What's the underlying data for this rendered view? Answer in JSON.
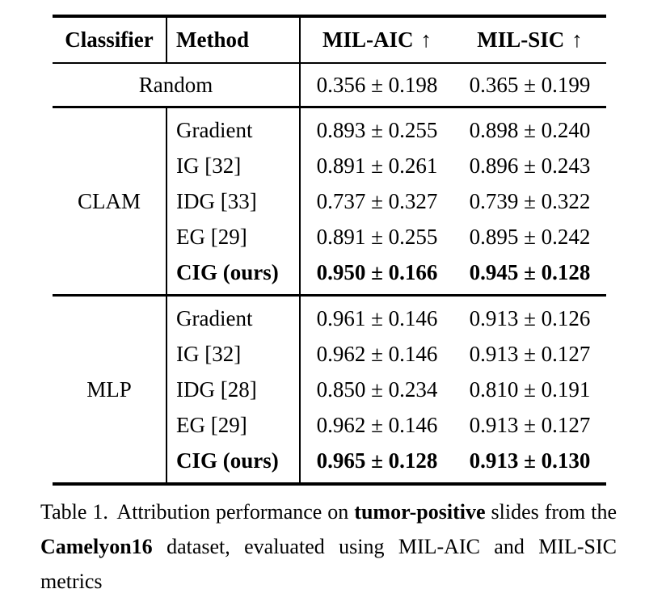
{
  "table": {
    "headers": {
      "classifier": "Classifier",
      "method": "Method",
      "mil_aic": "MIL-AIC",
      "mil_sic": "MIL-SIC",
      "arrow": "↑"
    },
    "random_row": {
      "label": "Random",
      "mil_aic": "0.356 ± 0.198",
      "mil_sic": "0.365 ± 0.199"
    },
    "groups": [
      {
        "classifier": "CLAM",
        "rows": [
          {
            "method": "Gradient",
            "mil_aic": "0.893 ± 0.255",
            "mil_sic": "0.898 ± 0.240"
          },
          {
            "method": "IG [32]",
            "mil_aic": "0.891 ± 0.261",
            "mil_sic": "0.896 ± 0.243"
          },
          {
            "method": "IDG [33]",
            "mil_aic": "0.737 ± 0.327",
            "mil_sic": "0.739 ± 0.322"
          },
          {
            "method": "EG [29]",
            "mil_aic": "0.891 ± 0.255",
            "mil_sic": "0.895 ± 0.242"
          },
          {
            "method": "CIG (ours)",
            "mil_aic": "0.950 ± 0.166",
            "mil_sic": "0.945 ± 0.128"
          }
        ]
      },
      {
        "classifier": "MLP",
        "rows": [
          {
            "method": "Gradient",
            "mil_aic": "0.961 ± 0.146",
            "mil_sic": "0.913 ± 0.126"
          },
          {
            "method": "IG [32]",
            "mil_aic": "0.962 ± 0.146",
            "mil_sic": "0.913 ± 0.127"
          },
          {
            "method": "IDG [28]",
            "mil_aic": "0.850 ± 0.234",
            "mil_sic": "0.810 ± 0.191"
          },
          {
            "method": "EG [29]",
            "mil_aic": "0.962 ± 0.146",
            "mil_sic": "0.913 ± 0.127"
          },
          {
            "method": "CIG (ours)",
            "mil_aic": "0.965 ± 0.128",
            "mil_sic": "0.913 ± 0.130"
          }
        ]
      }
    ]
  },
  "caption": {
    "label": "Table 1.",
    "text_1": "Attribution performance on",
    "bold_1": "tumor-positive",
    "text_2": "slides from the",
    "bold_2": "Camelyon16",
    "text_3": "dataset, evaluated using MIL-AIC and MIL-SIC metrics"
  }
}
